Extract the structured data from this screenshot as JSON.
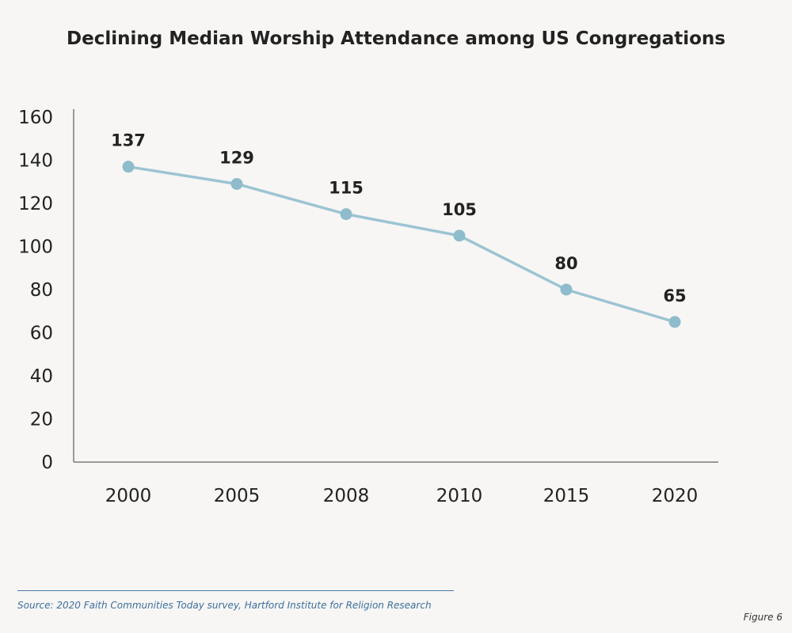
{
  "title": "Declining Median Worship Attendance among US Congregations",
  "source": "Source: 2020 Faith Communities Today survey, Hartford Institute for Religion Research",
  "figure_label": "Figure 6",
  "colors": {
    "line": "#9cc4d3",
    "marker": "#8fbccc",
    "axis": "#7a7a7a"
  },
  "chart_data": {
    "type": "line",
    "title": "Declining Median Worship Attendance among US Congregations",
    "xlabel": "",
    "ylabel": "",
    "categories": [
      "2000",
      "2005",
      "2008",
      "2010",
      "2015",
      "2020"
    ],
    "series": [
      {
        "values": [
          137,
          129,
          115,
          105,
          80,
          65
        ]
      }
    ],
    "data_labels": [
      "137",
      "129",
      "115",
      "105",
      "80",
      "65"
    ],
    "ylim": [
      0,
      160
    ],
    "yticks": [
      0,
      20,
      40,
      60,
      80,
      100,
      120,
      140,
      160
    ],
    "grid": false,
    "legend": "none"
  }
}
